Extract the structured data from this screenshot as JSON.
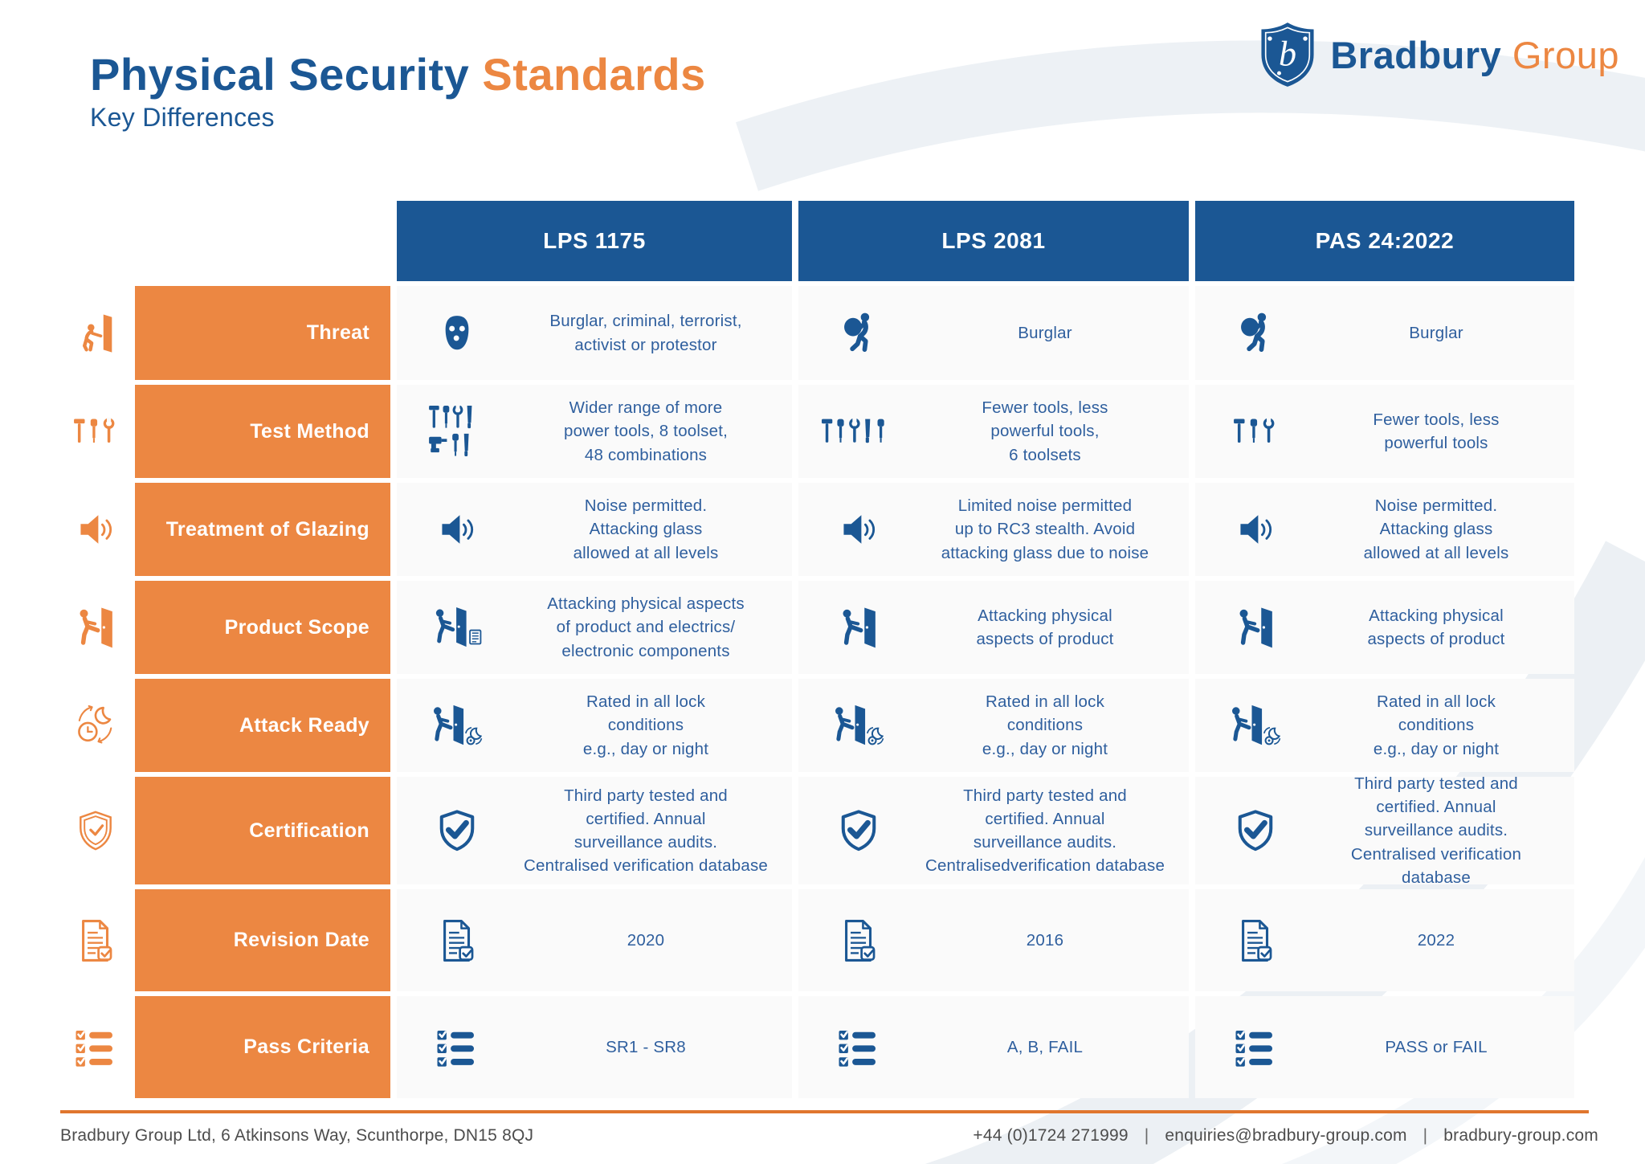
{
  "page": {
    "title_primary": "Physical Security ",
    "title_accent": "Standards",
    "subtitle": "Key Differences"
  },
  "brand": {
    "name_primary": "Bradbury ",
    "name_accent": "Group",
    "logo_letter": "b",
    "logo_icon": "shield-b-icon"
  },
  "colors": {
    "blue": "#1B5794",
    "orange": "#EC8742",
    "text_blue": "#2F5F9E",
    "footer_gray": "#4D4D4D",
    "rule_orange": "#E0762E"
  },
  "table": {
    "columns": [
      "LPS 1175",
      "LPS 2081",
      "PAS 24:2022"
    ],
    "rows": [
      {
        "label": "Threat",
        "row_icon": "intruder-door-icon",
        "cells": [
          {
            "icon": "balaclava-icon",
            "lines": [
              "Burglar, criminal, terrorist,",
              "activist  or protestor"
            ]
          },
          {
            "icon": "burglar-icon",
            "lines": [
              "Burglar"
            ]
          },
          {
            "icon": "burglar-icon",
            "lines": [
              "Burglar"
            ]
          }
        ]
      },
      {
        "label": "Test Method",
        "row_icon": "tools-icon",
        "cells": [
          {
            "icon": "toolset-large-icon",
            "lines": [
              "Wider range of more",
              "power tools, 8 toolset,",
              "48 combinations"
            ]
          },
          {
            "icon": "toolset-medium-icon",
            "lines": [
              "Fewer tools, less",
              "powerful tools,",
              "6 toolsets"
            ]
          },
          {
            "icon": "toolset-small-icon",
            "lines": [
              "Fewer tools, less",
              "powerful tools"
            ]
          }
        ]
      },
      {
        "label": "Treatment of Glazing",
        "row_icon": "speaker-icon",
        "cells": [
          {
            "icon": "speaker-icon",
            "lines": [
              "Noise permitted.",
              "Attacking glass",
              "allowed at all levels"
            ]
          },
          {
            "icon": "speaker-icon",
            "lines": [
              "Limited noise permitted",
              "up to RC3 stealth. Avoid",
              "attacking glass due to noise"
            ]
          },
          {
            "icon": "speaker-icon",
            "lines": [
              "Noise permitted.",
              "Attacking glass",
              "allowed at all levels"
            ]
          }
        ]
      },
      {
        "label": "Product Scope",
        "row_icon": "door-kick-icon",
        "cells": [
          {
            "icon": "door-kick-electronics-icon",
            "lines": [
              "Attacking physical aspects",
              "of product and electrics/",
              "electronic components"
            ]
          },
          {
            "icon": "door-kick-icon",
            "lines": [
              "Attacking physical",
              "aspects of product"
            ]
          },
          {
            "icon": "door-kick-icon",
            "lines": [
              "Attacking physical",
              "aspects of product"
            ]
          }
        ]
      },
      {
        "label": "Attack Ready",
        "row_icon": "day-night-icon",
        "cells": [
          {
            "icon": "door-kick-daynight-icon",
            "lines": [
              "Rated in all lock",
              "conditions",
              "e.g., day or night"
            ]
          },
          {
            "icon": "door-kick-daynight-icon",
            "lines": [
              "Rated in all lock",
              "conditions",
              "e.g., day or night"
            ]
          },
          {
            "icon": "door-kick-daynight-icon",
            "lines": [
              "Rated in all lock",
              "conditions",
              "e.g., day or night"
            ]
          }
        ]
      },
      {
        "label": "Certification",
        "row_icon": "shield-check-outline-icon",
        "cells": [
          {
            "icon": "shield-check-icon",
            "lines": [
              "Third party tested and",
              "certified. Annual",
              "surveillance audits.",
              "Centralised verification database"
            ]
          },
          {
            "icon": "shield-check-icon",
            "lines": [
              "Third party tested and",
              "certified. Annual",
              "surveillance audits.",
              "Centralisedverification database"
            ]
          },
          {
            "icon": "shield-check-icon",
            "lines": [
              "Third party tested and",
              "certified. Annual",
              "surveillance audits.",
              "Centralised verification database"
            ]
          }
        ]
      },
      {
        "label": "Revision Date",
        "row_icon": "document-check-icon",
        "cells": [
          {
            "icon": "document-check-icon",
            "lines": [
              "2020"
            ]
          },
          {
            "icon": "document-check-icon",
            "lines": [
              "2016"
            ]
          },
          {
            "icon": "document-check-icon",
            "lines": [
              "2022"
            ]
          }
        ]
      },
      {
        "label": "Pass Criteria",
        "row_icon": "checklist-icon",
        "cells": [
          {
            "icon": "checklist-icon",
            "lines": [
              "SR1 - SR8"
            ]
          },
          {
            "icon": "checklist-icon",
            "lines": [
              "A, B, FAIL"
            ]
          },
          {
            "icon": "checklist-icon",
            "lines": [
              "PASS or FAIL"
            ]
          }
        ]
      }
    ]
  },
  "footer": {
    "address": "Bradbury Group Ltd, 6 Atkinsons Way, Scunthorpe, DN15 8QJ",
    "separator": "|",
    "contacts": [
      "+44 (0)1724 271999",
      "enquiries@bradbury-group.com",
      "bradbury-group.com"
    ]
  }
}
